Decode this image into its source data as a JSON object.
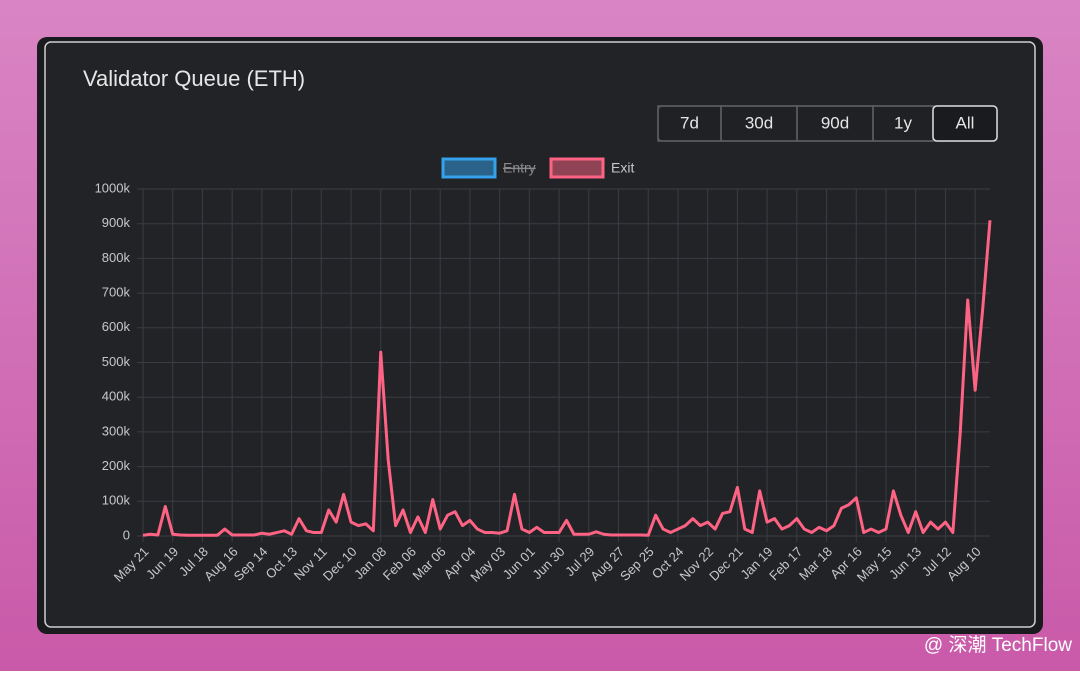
{
  "chart_data": {
    "type": "line",
    "title": "Validator Queue (ETH)",
    "range_buttons": [
      "7d",
      "30d",
      "90d",
      "1y",
      "All"
    ],
    "active_range": "All",
    "categories": [
      "May 21",
      null,
      null,
      null,
      "Jun 19",
      null,
      null,
      null,
      "Jul 18",
      null,
      null,
      null,
      "Aug 16",
      null,
      null,
      null,
      "Sep 14",
      null,
      null,
      null,
      "Oct 13",
      null,
      null,
      null,
      "Nov 11",
      null,
      null,
      null,
      "Dec 10",
      null,
      null,
      null,
      "Jan 08",
      null,
      null,
      null,
      "Feb 06",
      null,
      null,
      null,
      "Mar 06",
      null,
      null,
      null,
      "Apr 04",
      null,
      null,
      null,
      "May 03",
      null,
      null,
      null,
      "Jun 01",
      null,
      null,
      null,
      "Jun 30",
      null,
      null,
      null,
      "Jul 29",
      null,
      null,
      null,
      "Aug 27",
      null,
      null,
      null,
      "Sep 25",
      null,
      null,
      null,
      "Oct 24",
      null,
      null,
      null,
      "Nov 22",
      null,
      null,
      null,
      "Dec 21",
      null,
      null,
      null,
      "Jan 19",
      null,
      null,
      null,
      "Feb 17",
      null,
      null,
      null,
      "Mar 18",
      null,
      null,
      null,
      "Apr 16",
      null,
      null,
      null,
      "May 15",
      null,
      null,
      null,
      "Jun 13",
      null,
      null,
      null,
      "Jul 12",
      null,
      null,
      null,
      "Aug 10",
      null,
      null
    ],
    "series": [
      {
        "name": "Entry",
        "color": "#36a2eb",
        "hidden": true,
        "values": [
          null,
          null,
          null,
          null,
          null,
          null,
          null,
          null,
          null,
          null,
          null,
          null,
          null,
          null,
          null,
          null,
          null,
          null,
          null,
          null,
          null,
          null,
          null,
          null,
          null,
          null,
          null,
          null,
          null,
          null,
          null,
          null,
          null,
          null,
          null,
          null,
          null,
          null,
          null,
          null,
          null,
          null,
          null,
          null,
          null,
          null,
          null,
          null,
          null,
          null,
          null,
          null,
          null,
          null,
          null,
          null,
          null,
          null,
          null,
          null,
          null,
          null,
          null,
          null,
          null,
          null,
          null,
          null,
          null,
          null,
          null,
          null,
          null,
          null,
          null,
          null,
          null,
          null,
          null,
          null,
          null,
          null,
          null,
          null,
          null,
          null,
          null,
          null,
          null,
          null,
          null,
          null,
          null,
          null,
          null,
          null,
          null,
          null,
          null,
          null,
          null,
          null,
          null,
          null,
          null,
          null,
          null,
          null,
          null,
          null,
          null,
          null,
          null,
          null,
          null
        ]
      },
      {
        "name": "Exit",
        "color": "#ff6384",
        "hidden": false,
        "values": [
          2000,
          5000,
          3000,
          85000,
          5000,
          3000,
          2000,
          2000,
          2000,
          2000,
          2000,
          20000,
          3000,
          3000,
          3000,
          3000,
          8000,
          5000,
          10000,
          15000,
          5000,
          50000,
          15000,
          10000,
          10000,
          75000,
          40000,
          120000,
          40000,
          30000,
          35000,
          15000,
          530000,
          220000,
          30000,
          75000,
          10000,
          55000,
          10000,
          105000,
          20000,
          60000,
          70000,
          30000,
          45000,
          20000,
          10000,
          10000,
          8000,
          15000,
          120000,
          20000,
          10000,
          25000,
          10000,
          10000,
          10000,
          45000,
          5000,
          5000,
          5000,
          12000,
          5000,
          3000,
          3000,
          3000,
          3000,
          3000,
          2000,
          60000,
          20000,
          10000,
          20000,
          30000,
          50000,
          30000,
          40000,
          20000,
          65000,
          70000,
          140000,
          20000,
          10000,
          130000,
          40000,
          50000,
          20000,
          30000,
          50000,
          20000,
          10000,
          25000,
          15000,
          30000,
          80000,
          90000,
          110000,
          10000,
          20000,
          10000,
          20000,
          130000,
          60000,
          10000,
          70000,
          10000,
          40000,
          20000,
          40000,
          10000,
          300000,
          680000,
          420000,
          650000,
          910000
        ]
      }
    ],
    "ylim": [
      0,
      1000000
    ],
    "yticks": [
      0,
      {
        "value": 100000,
        "label": "100k"
      },
      {
        "value": 200000,
        "label": "200k"
      },
      {
        "value": 300000,
        "label": "300k"
      },
      {
        "value": 400000,
        "label": "400k"
      },
      {
        "value": 500000,
        "label": "500k"
      },
      {
        "value": 600000,
        "label": "600k"
      },
      {
        "value": 700000,
        "label": "700k"
      },
      {
        "value": 800000,
        "label": "800k"
      },
      {
        "value": 900000,
        "label": "900k"
      },
      {
        "value": 1000000,
        "label": "1000k"
      }
    ],
    "grid": true
  },
  "watermark": "@ 深潮 TechFlow"
}
